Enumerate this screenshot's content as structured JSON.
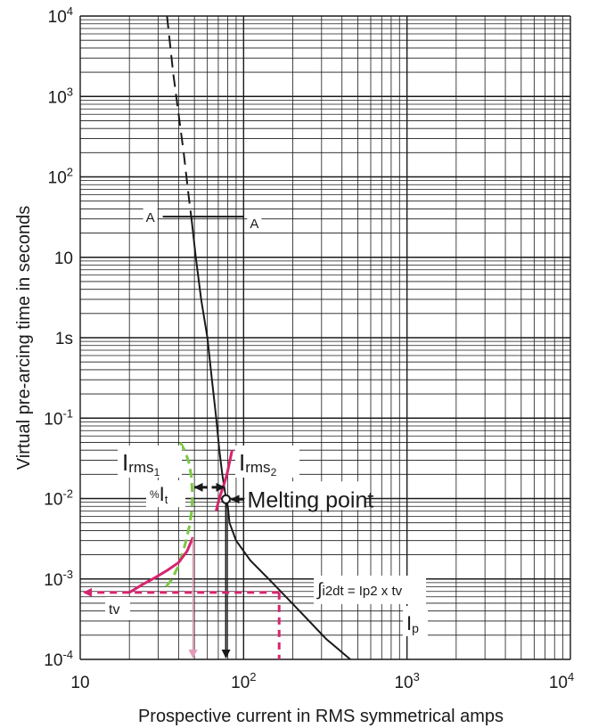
{
  "chart_data": {
    "type": "line",
    "scale": {
      "x": "log",
      "y": "log"
    },
    "xlim": [
      10,
      10000
    ],
    "ylim": [
      0.0001,
      10000
    ],
    "xlabel": "Prospective current in RMS symmetrical amps",
    "ylabel": "Virtual pre-arcing time in seconds",
    "x_tick_labels": [
      {
        "value": 10,
        "base": "10",
        "exp": ""
      },
      {
        "value": 100,
        "base": "10",
        "exp": "2"
      },
      {
        "value": 1000,
        "base": "10",
        "exp": "3"
      },
      {
        "value": 10000,
        "base": "10",
        "exp": "4"
      }
    ],
    "y_tick_labels": [
      {
        "value": 10000,
        "base": "10",
        "exp": "4"
      },
      {
        "value": 1000,
        "base": "10",
        "exp": "3"
      },
      {
        "value": 100,
        "base": "10",
        "exp": "2"
      },
      {
        "value": 10,
        "base": "10",
        "exp": ""
      },
      {
        "value": 1,
        "base": "1s",
        "exp": ""
      },
      {
        "value": 0.1,
        "base": "10",
        "exp": "-1"
      },
      {
        "value": 0.01,
        "base": "10",
        "exp": "-2"
      },
      {
        "value": 0.001,
        "base": "10",
        "exp": "-3"
      },
      {
        "value": 0.0001,
        "base": "10",
        "exp": "-4"
      }
    ],
    "grid": true,
    "series": [
      {
        "style": "dashed",
        "color": "#1a1a1a",
        "x": [
          34,
          37,
          40,
          43,
          46,
          48
        ],
        "y": [
          10000,
          2000,
          600,
          200,
          60,
          30
        ]
      },
      {
        "style": "solid",
        "color": "#1a1a1a",
        "x": [
          48,
          51,
          55,
          60,
          64,
          68,
          71,
          74,
          77,
          80,
          82,
          90,
          110,
          150,
          220,
          320,
          450
        ],
        "y": [
          30,
          10,
          3,
          1,
          0.3,
          0.1,
          0.04,
          0.02,
          0.012,
          0.008,
          0.005,
          0.003,
          0.0017,
          0.0009,
          0.0004,
          0.00018,
          0.0001
        ]
      },
      {
        "style": "dashed",
        "color": "#7ac943",
        "x": [
          41,
          44,
          46.5,
          48,
          48.6,
          48.2,
          46.5,
          44.5,
          42,
          39.5,
          36.5,
          33.5
        ],
        "y": [
          0.05,
          0.038,
          0.027,
          0.018,
          0.011,
          0.007,
          0.0045,
          0.003,
          0.002,
          0.0014,
          0.001,
          0.0008
        ]
      },
      {
        "style": "solid",
        "color": "#d6246e",
        "x": [
          68,
          70,
          72,
          74.5,
          77,
          79.5,
          82,
          85
        ],
        "y": [
          0.007,
          0.009,
          0.011,
          0.0135,
          0.0165,
          0.021,
          0.028,
          0.04
        ]
      },
      {
        "style": "solid",
        "color": "#d6246e",
        "x": [
          20,
          24,
          29,
          34.5,
          40,
          45,
          49
        ],
        "y": [
          0.00068,
          0.00085,
          0.00105,
          0.0013,
          0.0016,
          0.0022,
          0.0033
        ]
      }
    ],
    "annotations": {
      "a_left": "A",
      "a_right": "A",
      "a_line_y": 32,
      "a_line_x": [
        32,
        100
      ],
      "irms1_main": "I",
      "irms1_sub": "rms",
      "irms1_idx": "1",
      "irms2_main": "I",
      "irms2_sub": "rms",
      "irms2_idx": "2",
      "pct_prefix": "%",
      "pct_main": "I",
      "pct_sub": "t",
      "melting_point": "Melting point",
      "melting_point_x": 78,
      "melting_point_y": 0.0098,
      "integral_prefix": "∫",
      "integral_text": "i2dt = Ip2 x tv",
      "tv": "tv",
      "ip_main": "I",
      "ip_sub": "p",
      "tv_level_y": 0.00068,
      "ip_x": 165,
      "arrow_x1": 49,
      "arrow_x2": 78,
      "width_arrow_y": 0.0138
    },
    "colors": {
      "grid": "#1a1a1a",
      "curve": "#1a1a1a",
      "green": "#7ac943",
      "magenta": "#d6246e",
      "lightpink": "#e39ab8"
    }
  }
}
